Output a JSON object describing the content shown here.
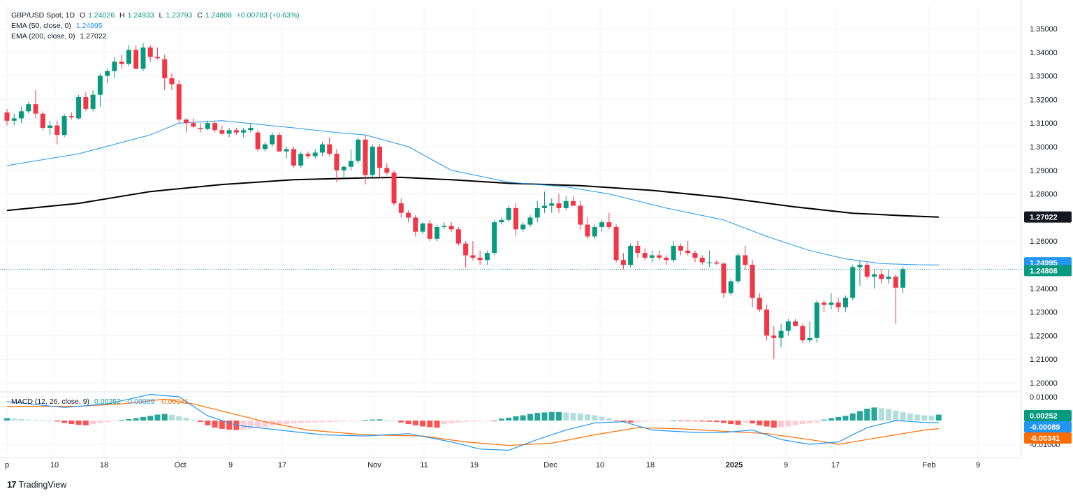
{
  "legend": {
    "symbol": "GBP/USD Spot, 1D",
    "o_label": "O",
    "o": "1.24026",
    "h_label": "H",
    "h": "1.24933",
    "l_label": "L",
    "l": "1.23793",
    "c_label": "C",
    "c": "1.24808",
    "change": "+0.00783 (+0.63%)",
    "ema50_label": "EMA (50, close, 0)",
    "ema50_value": "1.24995",
    "ema200_label": "EMA (200, close, 0)",
    "ema200_value": "1.27022",
    "macd_label": "MACD (12, 26, close, 9)",
    "macd_hist": "0.00252",
    "macd_line": "-0.00089",
    "macd_signal": "-0.00341"
  },
  "brand": {
    "name": "TradingView"
  },
  "colors": {
    "up": "#089981",
    "down": "#f23645",
    "ema50": "#2196f3",
    "ema200": "#000000",
    "macd": "#2196f3",
    "signal": "#ff6d00",
    "hist_up_strong": "#26a69a",
    "hist_up_weak": "#b2dfdb",
    "hist_down_strong": "#ff5252",
    "hist_down_weak": "#ffcdd2",
    "grid": "#f0f3fa"
  },
  "chart_data": [
    {
      "type": "candlestick",
      "title": "GBP/USD Spot, 1D",
      "ylim": [
        1.195,
        1.356
      ],
      "y_ticks": [
        "1.35000",
        "1.34000",
        "1.33000",
        "1.32000",
        "1.31000",
        "1.30000",
        "1.29000",
        "1.28000",
        "1.27000",
        "1.26000",
        "1.25000",
        "1.24000",
        "1.23000",
        "1.22000",
        "1.21000",
        "1.20000"
      ],
      "x_ticks": [
        "p",
        "10",
        "18",
        "Oct",
        "9",
        "17",
        "Nov",
        "11",
        "19",
        "Dec",
        "10",
        "18",
        "2025",
        "9",
        "17",
        "Feb",
        "9"
      ],
      "candles": [
        [
          1.3145,
          1.316,
          1.309,
          1.311
        ],
        [
          1.311,
          1.314,
          1.309,
          1.312
        ],
        [
          1.312,
          1.317,
          1.31,
          1.315
        ],
        [
          1.315,
          1.319,
          1.314,
          1.318
        ],
        [
          1.318,
          1.324,
          1.312,
          1.314
        ],
        [
          1.314,
          1.315,
          1.307,
          1.308
        ],
        [
          1.308,
          1.311,
          1.305,
          1.309
        ],
        [
          1.309,
          1.311,
          1.301,
          1.305
        ],
        [
          1.305,
          1.314,
          1.304,
          1.313
        ],
        [
          1.313,
          1.3145,
          1.3115,
          1.3125
        ],
        [
          1.312,
          1.322,
          1.3115,
          1.321
        ],
        [
          1.321,
          1.323,
          1.315,
          1.316
        ],
        [
          1.316,
          1.324,
          1.315,
          1.322
        ],
        [
          1.322,
          1.331,
          1.317,
          1.33
        ],
        [
          1.33,
          1.333,
          1.327,
          1.332
        ],
        [
          1.332,
          1.338,
          1.329,
          1.336
        ],
        [
          1.336,
          1.339,
          1.333,
          1.335
        ],
        [
          1.335,
          1.343,
          1.334,
          1.341
        ],
        [
          1.341,
          1.343,
          1.333,
          1.333
        ],
        [
          1.333,
          1.344,
          1.332,
          1.342
        ],
        [
          1.342,
          1.343,
          1.336,
          1.338
        ],
        [
          1.338,
          1.342,
          1.337,
          1.3375
        ],
        [
          1.337,
          1.339,
          1.324,
          1.329
        ],
        [
          1.329,
          1.331,
          1.324,
          1.3265
        ],
        [
          1.3265,
          1.328,
          1.31,
          1.3115
        ],
        [
          1.3115,
          1.312,
          1.306,
          1.31
        ],
        [
          1.31,
          1.312,
          1.308,
          1.3085
        ],
        [
          1.308,
          1.31,
          1.306,
          1.3075
        ],
        [
          1.3075,
          1.311,
          1.307,
          1.31
        ],
        [
          1.31,
          1.311,
          1.306,
          1.307
        ],
        [
          1.307,
          1.309,
          1.305,
          1.3055
        ],
        [
          1.3055,
          1.308,
          1.304,
          1.307
        ],
        [
          1.307,
          1.308,
          1.305,
          1.306
        ],
        [
          1.306,
          1.308,
          1.304,
          1.307
        ],
        [
          1.307,
          1.31,
          1.306,
          1.308
        ],
        [
          1.306,
          1.307,
          1.298,
          1.299
        ],
        [
          1.299,
          1.302,
          1.298,
          1.301
        ],
        [
          1.301,
          1.306,
          1.3,
          1.305
        ],
        [
          1.305,
          1.306,
          1.298,
          1.298
        ],
        [
          1.298,
          1.3,
          1.295,
          1.299
        ],
        [
          1.299,
          1.3,
          1.291,
          1.292
        ],
        [
          1.292,
          1.298,
          1.291,
          1.297
        ],
        [
          1.297,
          1.298,
          1.295,
          1.296
        ],
        [
          1.296,
          1.299,
          1.295,
          1.2975
        ],
        [
          1.2975,
          1.302,
          1.296,
          1.301
        ],
        [
          1.301,
          1.304,
          1.296,
          1.297
        ],
        [
          1.297,
          1.299,
          1.285,
          1.29
        ],
        [
          1.29,
          1.292,
          1.287,
          1.2915
        ],
        [
          1.2915,
          1.299,
          1.29,
          1.294
        ],
        [
          1.294,
          1.304,
          1.293,
          1.303
        ],
        [
          1.303,
          1.305,
          1.284,
          1.288
        ],
        [
          1.288,
          1.301,
          1.287,
          1.3
        ],
        [
          1.3,
          1.301,
          1.287,
          1.291
        ],
        [
          1.291,
          1.293,
          1.288,
          1.289
        ],
        [
          1.289,
          1.29,
          1.275,
          1.276
        ],
        [
          1.276,
          1.278,
          1.27,
          1.272
        ],
        [
          1.272,
          1.273,
          1.268,
          1.27
        ],
        [
          1.27,
          1.271,
          1.262,
          1.264
        ],
        [
          1.264,
          1.268,
          1.263,
          1.2675
        ],
        [
          1.2675,
          1.269,
          1.26,
          1.261
        ],
        [
          1.261,
          1.267,
          1.26,
          1.266
        ],
        [
          1.266,
          1.268,
          1.265,
          1.2665
        ],
        [
          1.2665,
          1.268,
          1.264,
          1.265
        ],
        [
          1.265,
          1.266,
          1.258,
          1.259
        ],
        [
          1.259,
          1.26,
          1.249,
          1.254
        ],
        [
          1.254,
          1.26,
          1.252,
          1.253
        ],
        [
          1.253,
          1.256,
          1.25,
          1.252
        ],
        [
          1.252,
          1.256,
          1.25,
          1.255
        ],
        [
          1.255,
          1.269,
          1.254,
          1.268
        ],
        [
          1.268,
          1.27,
          1.267,
          1.269
        ],
        [
          1.269,
          1.275,
          1.268,
          1.274
        ],
        [
          1.274,
          1.276,
          1.262,
          1.265
        ],
        [
          1.265,
          1.268,
          1.264,
          1.267
        ],
        [
          1.267,
          1.271,
          1.266,
          1.27
        ],
        [
          1.27,
          1.277,
          1.268,
          1.274
        ],
        [
          1.274,
          1.281,
          1.272,
          1.275
        ],
        [
          1.275,
          1.278,
          1.272,
          1.276
        ],
        [
          1.276,
          1.28,
          1.272,
          1.274
        ],
        [
          1.274,
          1.279,
          1.273,
          1.277
        ],
        [
          1.277,
          1.279,
          1.275,
          1.275
        ],
        [
          1.275,
          1.277,
          1.265,
          1.267
        ],
        [
          1.267,
          1.27,
          1.261,
          1.262
        ],
        [
          1.262,
          1.267,
          1.261,
          1.266
        ],
        [
          1.266,
          1.269,
          1.264,
          1.268
        ],
        [
          1.268,
          1.272,
          1.265,
          1.266
        ],
        [
          1.266,
          1.267,
          1.251,
          1.252
        ],
        [
          1.252,
          1.255,
          1.248,
          1.25
        ],
        [
          1.25,
          1.259,
          1.249,
          1.258
        ],
        [
          1.258,
          1.26,
          1.253,
          1.255
        ],
        [
          1.255,
          1.257,
          1.252,
          1.253
        ],
        [
          1.253,
          1.256,
          1.251,
          1.254
        ],
        [
          1.254,
          1.256,
          1.252,
          1.253
        ],
        [
          1.253,
          1.254,
          1.25,
          1.252
        ],
        [
          1.252,
          1.26,
          1.251,
          1.258
        ],
        [
          1.258,
          1.259,
          1.254,
          1.256
        ],
        [
          1.256,
          1.26,
          1.254,
          1.255
        ],
        [
          1.255,
          1.256,
          1.251,
          1.253
        ],
        [
          1.253,
          1.254,
          1.25,
          1.251
        ],
        [
          1.251,
          1.256,
          1.249,
          1.251
        ],
        [
          1.251,
          1.252,
          1.25,
          1.2505
        ],
        [
          1.2505,
          1.251,
          1.236,
          1.238
        ],
        [
          1.238,
          1.244,
          1.237,
          1.243
        ],
        [
          1.243,
          1.255,
          1.242,
          1.254
        ],
        [
          1.254,
          1.258,
          1.248,
          1.25
        ],
        [
          1.25,
          1.252,
          1.232,
          1.236
        ],
        [
          1.236,
          1.238,
          1.23,
          1.231
        ],
        [
          1.231,
          1.233,
          1.218,
          1.22
        ],
        [
          1.22,
          1.224,
          1.21,
          1.219
        ],
        [
          1.219,
          1.225,
          1.215,
          1.222
        ],
        [
          1.222,
          1.227,
          1.22,
          1.226
        ],
        [
          1.226,
          1.227,
          1.224,
          1.224
        ],
        [
          1.224,
          1.225,
          1.217,
          1.218
        ],
        [
          1.218,
          1.226,
          1.217,
          1.219
        ],
        [
          1.219,
          1.235,
          1.217,
          1.234
        ],
        [
          1.234,
          1.235,
          1.23,
          1.233
        ],
        [
          1.233,
          1.238,
          1.231,
          1.234
        ],
        [
          1.234,
          1.236,
          1.23,
          1.232
        ],
        [
          1.232,
          1.237,
          1.23,
          1.236
        ],
        [
          1.236,
          1.25,
          1.235,
          1.249
        ],
        [
          1.249,
          1.252,
          1.241,
          1.25
        ],
        [
          1.25,
          1.251,
          1.244,
          1.245
        ],
        [
          1.245,
          1.248,
          1.24,
          1.246
        ],
        [
          1.246,
          1.248,
          1.242,
          1.244
        ],
        [
          1.244,
          1.248,
          1.242,
          1.245
        ],
        [
          1.245,
          1.246,
          1.225,
          1.2403
        ],
        [
          1.2403,
          1.2493,
          1.2379,
          1.2481
        ]
      ],
      "ema50_points": [
        [
          0,
          1.292
        ],
        [
          10,
          1.297
        ],
        [
          20,
          1.305
        ],
        [
          24,
          1.31
        ],
        [
          30,
          1.311
        ],
        [
          40,
          1.308
        ],
        [
          46,
          1.306
        ],
        [
          50,
          1.305
        ],
        [
          56,
          1.3
        ],
        [
          62,
          1.29
        ],
        [
          70,
          1.285
        ],
        [
          78,
          1.283
        ],
        [
          84,
          1.28
        ],
        [
          92,
          1.274
        ],
        [
          100,
          1.269
        ],
        [
          106,
          1.262
        ],
        [
          112,
          1.256
        ],
        [
          117,
          1.2525
        ],
        [
          122,
          1.2505
        ],
        [
          127,
          1.25
        ],
        [
          130,
          1.2499
        ]
      ],
      "ema200_points": [
        [
          0,
          1.273
        ],
        [
          10,
          1.276
        ],
        [
          20,
          1.281
        ],
        [
          30,
          1.284
        ],
        [
          40,
          1.286
        ],
        [
          50,
          1.2868
        ],
        [
          55,
          1.287
        ],
        [
          62,
          1.286
        ],
        [
          70,
          1.2845
        ],
        [
          80,
          1.2835
        ],
        [
          90,
          1.2815
        ],
        [
          100,
          1.2785
        ],
        [
          110,
          1.2745
        ],
        [
          118,
          1.2718
        ],
        [
          125,
          1.2708
        ],
        [
          130,
          1.2702
        ]
      ]
    },
    {
      "type": "macd",
      "title": "MACD (12, 26, close, 9)",
      "ylim": [
        -0.0123,
        0.0125
      ],
      "y_ticks": [
        "0.01000",
        "-0.01000"
      ],
      "macd_points": [
        [
          0,
          0.008
        ],
        [
          8,
          0.0055
        ],
        [
          14,
          0.007
        ],
        [
          20,
          0.011
        ],
        [
          24,
          0.01
        ],
        [
          28,
          0.002
        ],
        [
          32,
          -0.002
        ],
        [
          38,
          -0.004
        ],
        [
          44,
          -0.006
        ],
        [
          50,
          -0.0065
        ],
        [
          56,
          -0.0055
        ],
        [
          62,
          -0.009
        ],
        [
          66,
          -0.012
        ],
        [
          70,
          -0.0125
        ],
        [
          74,
          -0.008
        ],
        [
          78,
          -0.004
        ],
        [
          82,
          -0.001
        ],
        [
          86,
          -0.0005
        ],
        [
          90,
          -0.004
        ],
        [
          96,
          -0.005
        ],
        [
          100,
          -0.005
        ],
        [
          104,
          -0.004
        ],
        [
          108,
          -0.008
        ],
        [
          112,
          -0.01
        ],
        [
          116,
          -0.009
        ],
        [
          120,
          -0.003
        ],
        [
          124,
          0.0
        ],
        [
          128,
          -0.0008
        ],
        [
          130,
          -0.0009
        ]
      ],
      "signal_points": [
        [
          0,
          0.006
        ],
        [
          10,
          0.006
        ],
        [
          16,
          0.007
        ],
        [
          22,
          0.009
        ],
        [
          26,
          0.007
        ],
        [
          30,
          0.004
        ],
        [
          36,
          -0.0005
        ],
        [
          42,
          -0.004
        ],
        [
          50,
          -0.006
        ],
        [
          58,
          -0.0065
        ],
        [
          64,
          -0.009
        ],
        [
          70,
          -0.0105
        ],
        [
          76,
          -0.0095
        ],
        [
          82,
          -0.006
        ],
        [
          88,
          -0.003
        ],
        [
          94,
          -0.0035
        ],
        [
          100,
          -0.0045
        ],
        [
          106,
          -0.0055
        ],
        [
          112,
          -0.008
        ],
        [
          116,
          -0.01
        ],
        [
          120,
          -0.008
        ],
        [
          124,
          -0.006
        ],
        [
          128,
          -0.004
        ],
        [
          130,
          -0.0034
        ]
      ],
      "histogram": [
        0.001,
        0.0008,
        0.0006,
        0.0004,
        0.0003,
        0.0002,
        0.0,
        -0.0004,
        -0.001,
        -0.0015,
        -0.0018,
        -0.002,
        -0.0015,
        -0.001,
        -0.0006,
        -0.0003,
        0.0002,
        0.0006,
        0.001,
        0.0015,
        0.002,
        0.0025,
        0.0028,
        0.0024,
        0.0018,
        0.0012,
        0.0004,
        -0.0006,
        -0.002,
        -0.003,
        -0.0035,
        -0.0038,
        -0.004,
        -0.0038,
        -0.0034,
        -0.003,
        -0.0026,
        -0.0022,
        -0.0018,
        -0.0015,
        -0.0012,
        -0.001,
        -0.0009,
        -0.0008,
        -0.0007,
        -0.0006,
        -0.0005,
        -0.0004,
        -0.0003,
        -0.0002,
        0.0002,
        0.0004,
        0.0005,
        0.0003,
        0.0002,
        -0.0008,
        -0.0015,
        -0.002,
        -0.0025,
        -0.0028,
        -0.003,
        -0.0015,
        -0.0012,
        -0.0008,
        -0.0006,
        -0.0004,
        -0.0003,
        -0.0002,
        -0.0002,
        0.0008,
        0.0012,
        0.0018,
        0.0022,
        0.0028,
        0.0032,
        0.0034,
        0.0036,
        0.0036,
        0.0034,
        0.0032,
        0.003,
        0.0026,
        0.0022,
        0.0016,
        0.001,
        -0.0003,
        -0.0006,
        -0.0008,
        -0.0007,
        -0.0005,
        -0.0003,
        -0.0002,
        -0.0001,
        0.0,
        -0.0001,
        -0.0002,
        -0.0003,
        -0.0004,
        -0.0005,
        -0.0006,
        -0.001,
        -0.0015,
        -0.0018,
        -0.001,
        -0.0012,
        -0.002,
        -0.0025,
        -0.003,
        -0.0028,
        -0.0025,
        -0.002,
        -0.0015,
        -0.0012,
        -0.0008,
        0.0004,
        0.001,
        0.0015,
        0.002,
        0.003,
        0.004,
        0.005,
        0.0055,
        0.0052,
        0.0048,
        0.0042,
        0.0036,
        0.003,
        0.0025,
        0.0022,
        0.002,
        0.0025
      ]
    }
  ]
}
